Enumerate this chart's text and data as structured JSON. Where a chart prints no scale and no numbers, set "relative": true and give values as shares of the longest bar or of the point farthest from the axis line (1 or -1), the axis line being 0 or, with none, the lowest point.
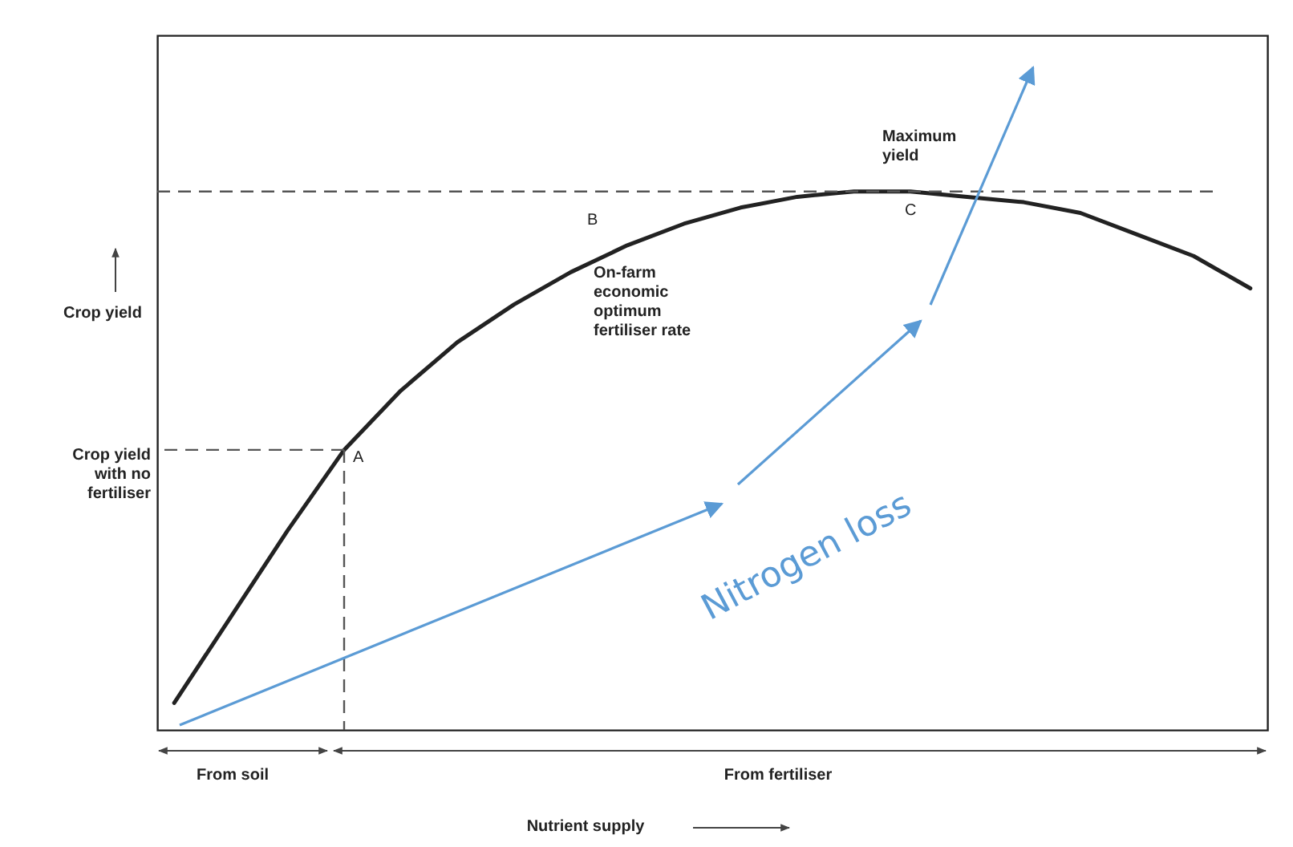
{
  "chart_data": {
    "type": "line",
    "relative": true,
    "ylabel": "Crop yield",
    "marker": "none",
    "line_style": "solid",
    "categories": [
      null,
      null,
      null,
      null,
      null,
      null,
      null,
      null,
      null,
      null,
      null,
      null,
      null,
      null,
      null,
      null,
      null,
      null,
      null,
      null
    ],
    "series": [
      {
        "color": "#222222",
        "values": [
          0.05,
          0.21,
          0.37,
          0.52,
          0.63,
          0.72,
          0.79,
          0.85,
          0.9,
          0.94,
          0.97,
          0.99,
          1,
          1,
          0.99,
          0.98,
          0.96,
          0.92,
          0.88,
          0.82
        ]
      }
    ],
    "ref_lines": [
      {
        "axis": "y",
        "value": 1,
        "line_style": "dashed",
        "color": "#555555"
      },
      {
        "axis": "y",
        "value": 0.52,
        "label": "Crop yield\nwith no\nfertiliser",
        "line_style": "dashed",
        "color": "#555555"
      }
    ],
    "annotations": [
      "A",
      "B",
      "C",
      "Maximum\nyield",
      "On-farm\neconomic\noptimum\nfertiliser rate",
      "Nitrogen loss",
      "From soil",
      "From fertiliser",
      "Nutrient supply"
    ]
  }
}
